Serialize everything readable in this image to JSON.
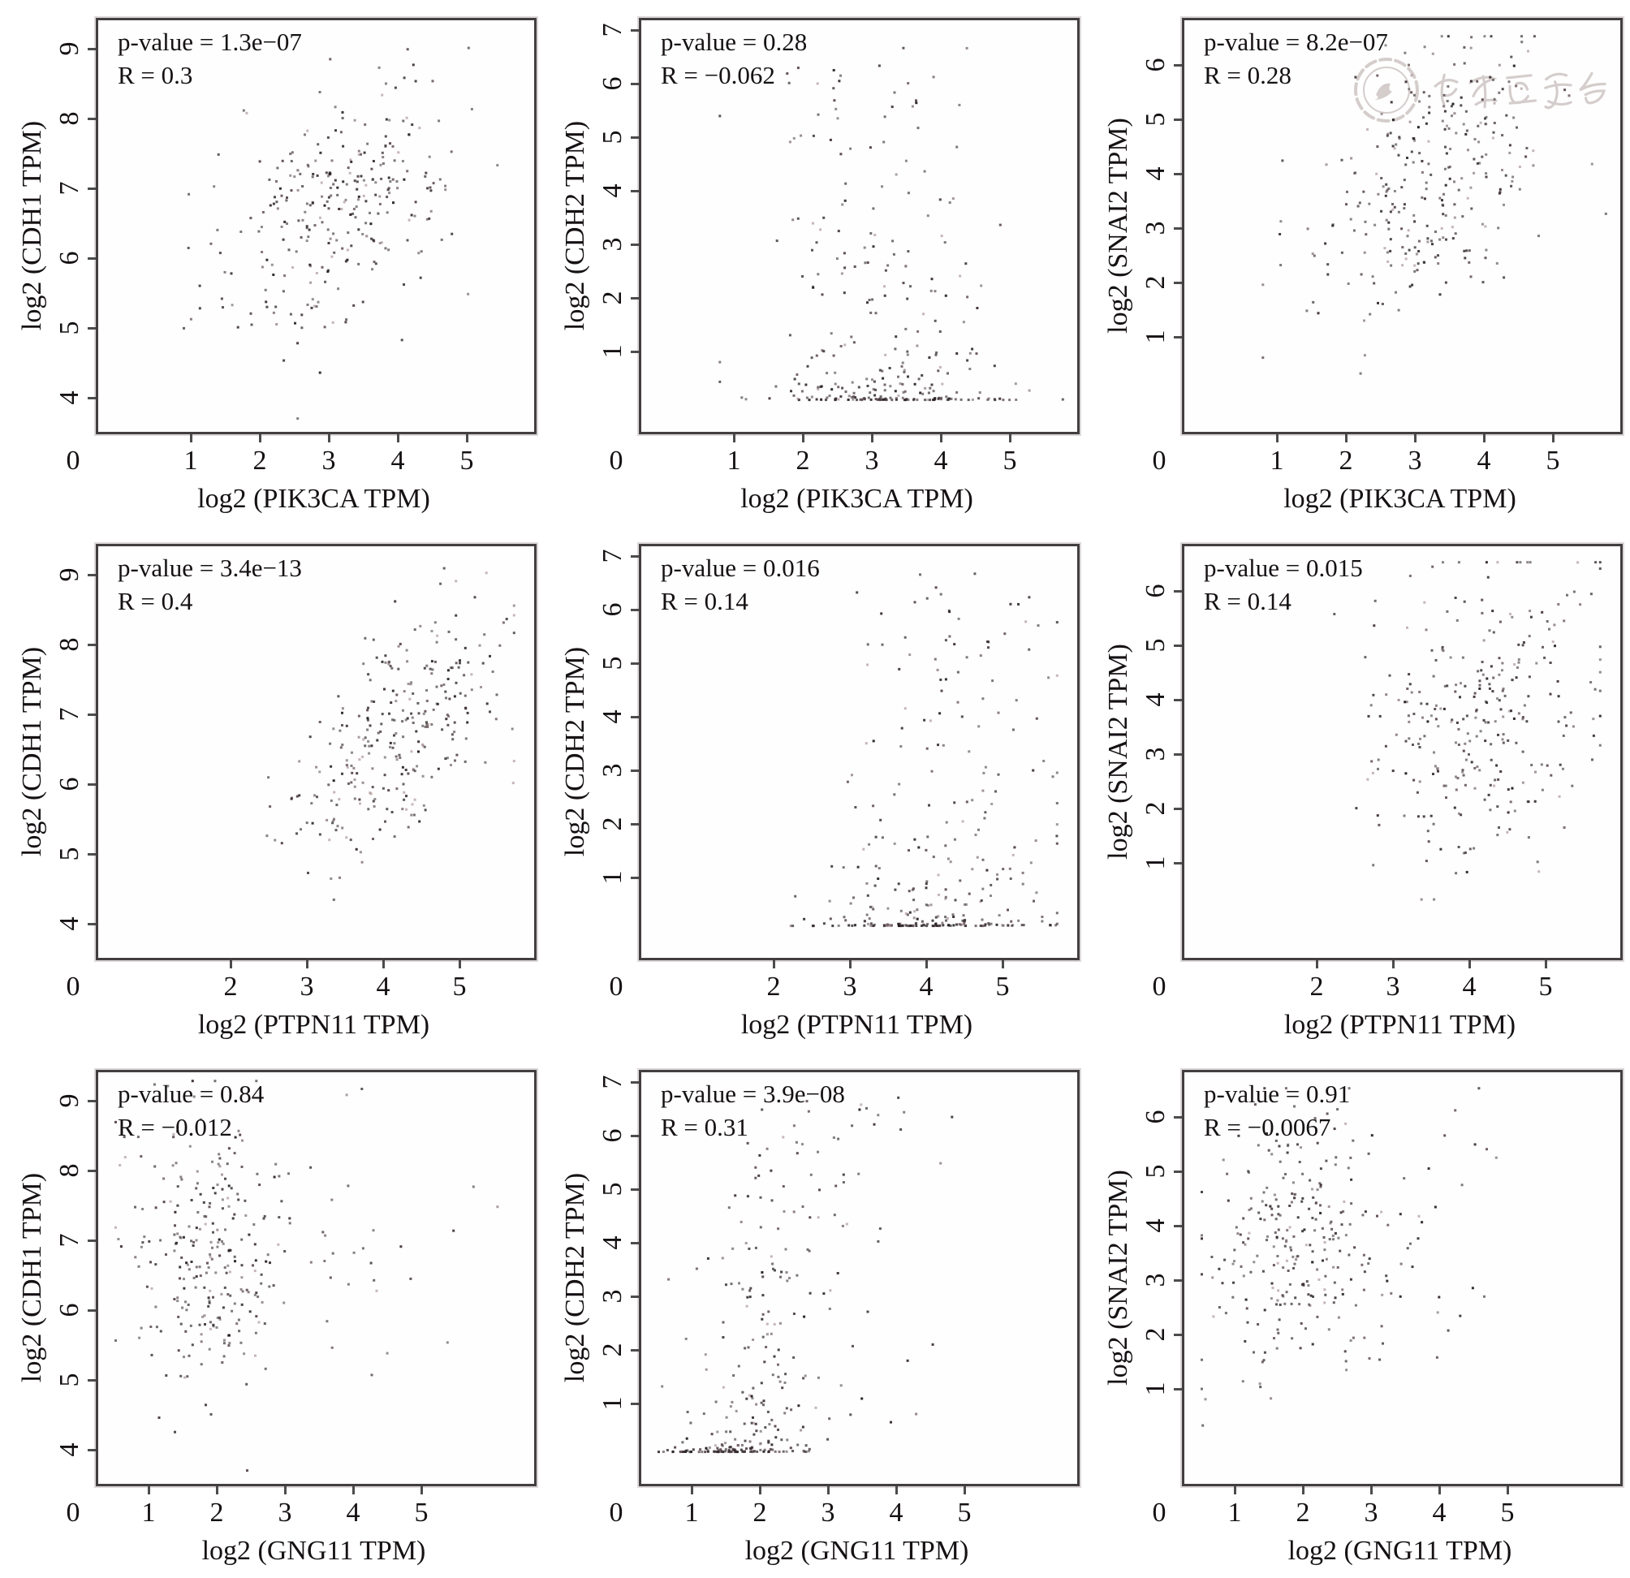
{
  "figure": {
    "description": "3x3 grid of gene expression correlation scatter plots",
    "watermark": {
      "organization_text": "中华医学会",
      "color": "#cdc5c4",
      "on_plot": "SNAI2-vs-PIK3CA"
    }
  },
  "chart_data": [
    {
      "type": "scatter",
      "row": 1,
      "col": 1,
      "x_gene": "PIK3CA",
      "y_gene": "CDH1",
      "xlabel": "log2 (PIK3CA TPM)",
      "ylabel": "log2 (CDH1 TPM)",
      "p_label": "p-value = 1.3e−07",
      "r_label": "R = 0.3",
      "p_value": "1.3e-07",
      "R": 0.3,
      "n": 300,
      "seed": 101,
      "watermark": false,
      "x_axis": {
        "ticks": [
          1,
          2,
          3,
          4,
          5
        ],
        "origin_label": "0",
        "t0": 1,
        "p0": 114,
        "k": 85
      },
      "y_axis": {
        "ticks": [
          4,
          5,
          6,
          7,
          8,
          9
        ],
        "t0": 9,
        "p0": 35,
        "k": -86
      },
      "xdist": {
        "type": "normal",
        "mean": 3.15,
        "sd": 0.85,
        "min": 0.78,
        "max": 5.75
      },
      "ydist": {
        "type": "normal",
        "mean": 6.72,
        "sd": 0.95,
        "min": 3.72,
        "max": 9.3
      },
      "xlim": [
        0,
        5.8
      ],
      "ylim": [
        3.5,
        9.4
      ]
    },
    {
      "type": "scatter",
      "row": 1,
      "col": 2,
      "x_gene": "PIK3CA",
      "y_gene": "CDH2",
      "xlabel": "log2 (PIK3CA TPM)",
      "ylabel": "log2 (CDH2 TPM)",
      "p_label": "p-value = 0.28",
      "r_label": "R = −0.062",
      "p_value": "0.28",
      "R": -0.062,
      "n": 300,
      "seed": 102,
      "watermark": false,
      "x_axis": {
        "ticks": [
          1,
          2,
          3,
          4,
          5
        ],
        "origin_label": "0",
        "t0": 1,
        "p0": 114,
        "k": 85
      },
      "y_axis": {
        "ticks": [
          1,
          2,
          3,
          4,
          5,
          6,
          7
        ],
        "t0": 7,
        "p0": 12,
        "k": -66
      },
      "xdist": {
        "type": "normal",
        "mean": 3.15,
        "sd": 0.85,
        "min": 0.78,
        "max": 5.75
      },
      "ydist": {
        "type": "power",
        "base": 0.12,
        "scale": 6.7,
        "power": 3.6,
        "min": 0.12,
        "max": 6.9
      },
      "xlim": [
        0,
        5.8
      ],
      "ylim": [
        0,
        7
      ]
    },
    {
      "type": "scatter",
      "row": 1,
      "col": 3,
      "x_gene": "PIK3CA",
      "y_gene": "SNAI2",
      "xlabel": "log2 (PIK3CA TPM)",
      "ylabel": "log2 (SNAI2 TPM)",
      "p_label": "p-value = 8.2e−07",
      "r_label": "R = 0.28",
      "p_value": "8.2e-07",
      "R": 0.28,
      "n": 300,
      "seed": 103,
      "watermark": true,
      "x_axis": {
        "ticks": [
          1,
          2,
          3,
          4,
          5
        ],
        "origin_label": "0",
        "t0": 1,
        "p0": 114,
        "k": 85
      },
      "y_axis": {
        "ticks": [
          1,
          2,
          3,
          4,
          5,
          6
        ],
        "t0": 6,
        "p0": 55,
        "k": -67
      },
      "xdist": {
        "type": "normal",
        "mean": 3.15,
        "sd": 0.85,
        "min": 0.78,
        "max": 5.75
      },
      "ydist": {
        "type": "normal",
        "mean": 3.8,
        "sd": 1.35,
        "min": 0.35,
        "max": 6.55
      },
      "xlim": [
        0,
        5.8
      ],
      "ylim": [
        0,
        6.8
      ]
    },
    {
      "type": "scatter",
      "row": 2,
      "col": 1,
      "x_gene": "PTPN11",
      "y_gene": "CDH1",
      "xlabel": "log2 (PTPN11 TPM)",
      "ylabel": "log2 (CDH1 TPM)",
      "p_label": "p-value = 3.4e−13",
      "r_label": "R = 0.4",
      "p_value": "3.4e-13",
      "R": 0.4,
      "n": 300,
      "seed": 104,
      "watermark": false,
      "x_axis": {
        "ticks": [
          2,
          3,
          4,
          5
        ],
        "origin_label": "0",
        "t0": 2,
        "p0": 163,
        "k": 94
      },
      "y_axis": {
        "ticks": [
          4,
          5,
          6,
          7,
          8,
          9
        ],
        "t0": 9,
        "p0": 35,
        "k": -86
      },
      "xdist": {
        "type": "normal",
        "mean": 4.15,
        "sd": 0.75,
        "min": 1.4,
        "max": 5.7
      },
      "ydist": {
        "type": "normal",
        "mean": 6.72,
        "sd": 0.95,
        "min": 3.72,
        "max": 9.3
      },
      "xlim": [
        0,
        5.8
      ],
      "ylim": [
        3.5,
        9.4
      ]
    },
    {
      "type": "scatter",
      "row": 2,
      "col": 2,
      "x_gene": "PTPN11",
      "y_gene": "CDH2",
      "xlabel": "log2 (PTPN11 TPM)",
      "ylabel": "log2 (CDH2 TPM)",
      "p_label": "p-value = 0.016",
      "r_label": "R = 0.14",
      "p_value": "0.016",
      "R": 0.14,
      "n": 300,
      "seed": 105,
      "watermark": false,
      "x_axis": {
        "ticks": [
          2,
          3,
          4,
          5
        ],
        "origin_label": "0",
        "t0": 2,
        "p0": 163,
        "k": 94
      },
      "y_axis": {
        "ticks": [
          1,
          2,
          3,
          4,
          5,
          6,
          7
        ],
        "t0": 7,
        "p0": 12,
        "k": -66
      },
      "xdist": {
        "type": "normal",
        "mean": 4.15,
        "sd": 0.75,
        "min": 1.4,
        "max": 5.7
      },
      "ydist": {
        "type": "power",
        "base": 0.12,
        "scale": 6.7,
        "power": 3.6,
        "min": 0.12,
        "max": 6.9
      },
      "xlim": [
        0,
        5.8
      ],
      "ylim": [
        0,
        7
      ]
    },
    {
      "type": "scatter",
      "row": 2,
      "col": 3,
      "x_gene": "PTPN11",
      "y_gene": "SNAI2",
      "xlabel": "log2 (PTPN11 TPM)",
      "ylabel": "log2 (SNAI2 TPM)",
      "p_label": "p-value = 0.015",
      "r_label": "R = 0.14",
      "p_value": "0.015",
      "R": 0.14,
      "n": 300,
      "seed": 106,
      "watermark": false,
      "x_axis": {
        "ticks": [
          2,
          3,
          4,
          5
        ],
        "origin_label": "0",
        "t0": 2,
        "p0": 163,
        "k": 94
      },
      "y_axis": {
        "ticks": [
          1,
          2,
          3,
          4,
          5,
          6
        ],
        "t0": 6,
        "p0": 55,
        "k": -67
      },
      "xdist": {
        "type": "normal",
        "mean": 4.15,
        "sd": 0.75,
        "min": 1.4,
        "max": 5.7
      },
      "ydist": {
        "type": "normal",
        "mean": 3.8,
        "sd": 1.35,
        "min": 0.35,
        "max": 6.55
      },
      "xlim": [
        0,
        5.8
      ],
      "ylim": [
        0,
        6.8
      ]
    },
    {
      "type": "scatter",
      "row": 3,
      "col": 1,
      "x_gene": "GNG11",
      "y_gene": "CDH1",
      "xlabel": "log2 (GNG11 TPM)",
      "ylabel": "log2 (CDH1 TPM)",
      "p_label": "p-value = 0.84",
      "r_label": "R = −0.012",
      "p_value": "0.84",
      "R": -0.012,
      "n": 300,
      "seed": 107,
      "watermark": false,
      "x_axis": {
        "ticks": [
          1,
          2,
          3,
          4,
          5
        ],
        "origin_label": "0",
        "t0": 1,
        "p0": 62,
        "k": 84
      },
      "y_axis": {
        "ticks": [
          4,
          5,
          6,
          7,
          8,
          9
        ],
        "t0": 9,
        "p0": 35,
        "k": -86
      },
      "xdist": {
        "type": "mix",
        "mean": 1.85,
        "sd": 0.6,
        "mean2": 3.1,
        "sd2": 1.0,
        "p2": 0.17,
        "min": 0.5,
        "max": 6.1
      },
      "ydist": {
        "type": "normal",
        "mean": 6.72,
        "sd": 0.95,
        "min": 3.72,
        "max": 9.3
      },
      "xlim": [
        0,
        5.5
      ],
      "ylim": [
        3.5,
        9.4
      ]
    },
    {
      "type": "scatter",
      "row": 3,
      "col": 2,
      "x_gene": "GNG11",
      "y_gene": "CDH2",
      "xlabel": "log2 (GNG11 TPM)",
      "ylabel": "log2 (CDH2 TPM)",
      "p_label": "p-value = 3.9e−08",
      "r_label": "R = 0.31",
      "p_value": "3.9e-08",
      "R": 0.31,
      "n": 300,
      "seed": 108,
      "watermark": false,
      "x_axis": {
        "ticks": [
          1,
          2,
          3,
          4,
          5
        ],
        "origin_label": "0",
        "t0": 1,
        "p0": 62,
        "k": 84
      },
      "y_axis": {
        "ticks": [
          1,
          2,
          3,
          4,
          5,
          6,
          7
        ],
        "t0": 7,
        "p0": 12,
        "k": -66
      },
      "xdist": {
        "type": "mix",
        "mean": 1.85,
        "sd": 0.6,
        "mean2": 3.1,
        "sd2": 1.0,
        "p2": 0.17,
        "min": 0.5,
        "max": 6.1
      },
      "ydist": {
        "type": "power",
        "base": 0.12,
        "scale": 6.7,
        "power": 3.6,
        "min": 0.12,
        "max": 6.9
      },
      "xlim": [
        0,
        5.5
      ],
      "ylim": [
        0,
        7
      ]
    },
    {
      "type": "scatter",
      "row": 3,
      "col": 3,
      "x_gene": "GNG11",
      "y_gene": "SNAI2",
      "xlabel": "log2 (GNG11 TPM)",
      "ylabel": "log2 (SNAI2 TPM)",
      "p_label": "p-value = 0.91",
      "r_label": "R = −0.0067",
      "p_value": "0.91",
      "R": -0.0067,
      "n": 300,
      "seed": 109,
      "watermark": false,
      "x_axis": {
        "ticks": [
          1,
          2,
          3,
          4,
          5
        ],
        "origin_label": "0",
        "t0": 1,
        "p0": 62,
        "k": 84
      },
      "y_axis": {
        "ticks": [
          1,
          2,
          3,
          4,
          5,
          6
        ],
        "t0": 6,
        "p0": 55,
        "k": -67
      },
      "xdist": {
        "type": "mix",
        "mean": 1.85,
        "sd": 0.6,
        "mean2": 3.1,
        "sd2": 1.0,
        "p2": 0.17,
        "min": 0.5,
        "max": 6.1
      },
      "ydist": {
        "type": "normal",
        "mean": 3.8,
        "sd": 1.35,
        "min": 0.35,
        "max": 6.55
      },
      "xlim": [
        0,
        5.5
      ],
      "ylim": [
        0,
        6.8
      ]
    }
  ],
  "style": {
    "point_colors": [
      "#201a1e",
      "#2e2428",
      "#3a2e30",
      "#554246"
    ],
    "point_accent": "#977a7c",
    "border_color": "#433e40",
    "tick_color": "#4c4c4c"
  }
}
